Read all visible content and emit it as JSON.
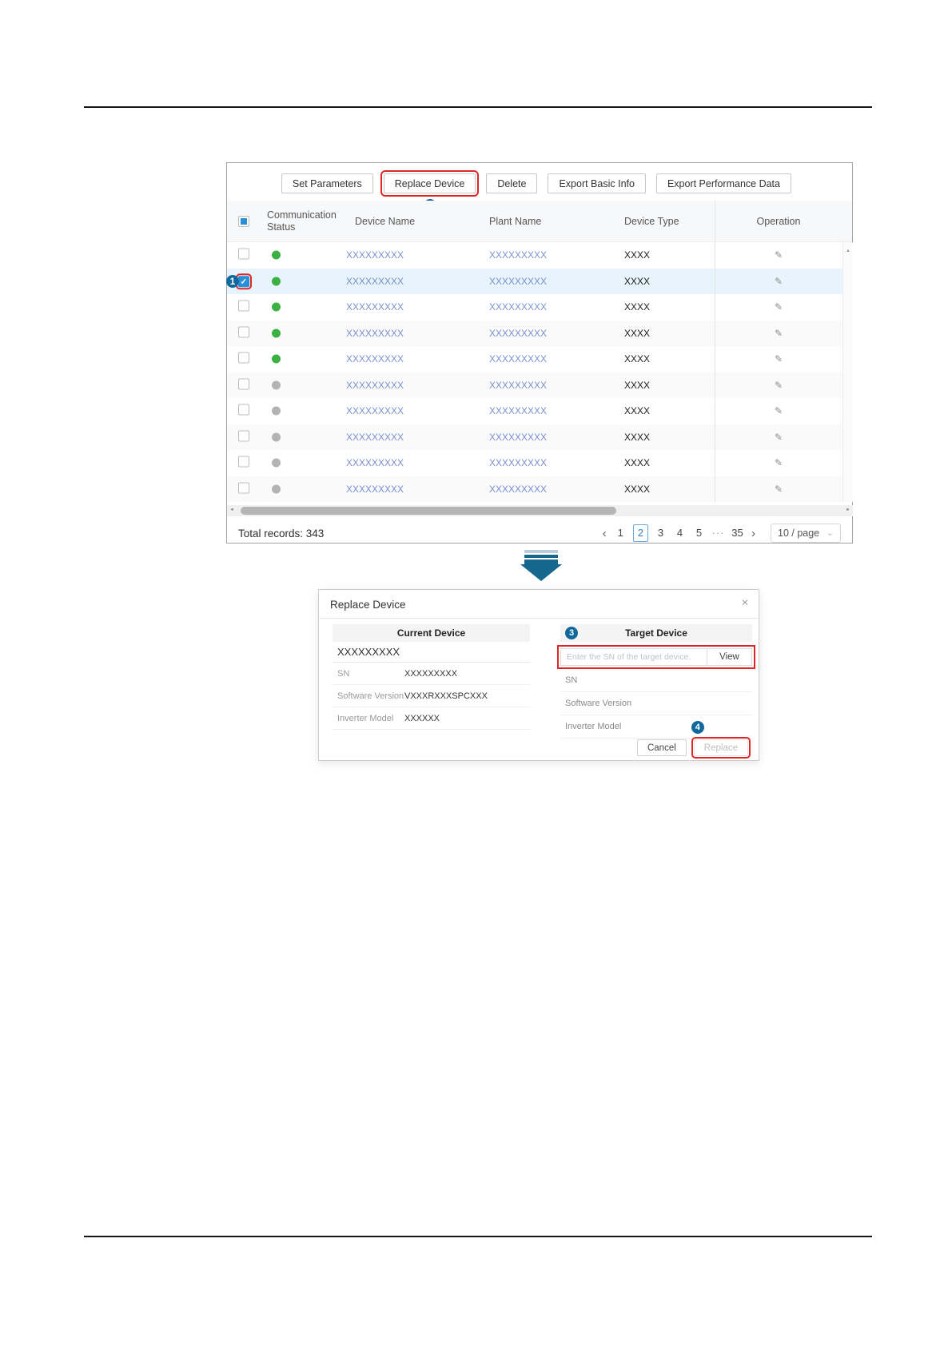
{
  "annotations": {
    "step1": "1",
    "step2": "2",
    "step3": "3",
    "step4": "4"
  },
  "icons": {
    "edit": "✎",
    "close": "✕",
    "dropdown": "⌄",
    "prev": "‹",
    "next": "›",
    "scroll_up": "▲",
    "scroll_left": "◄",
    "scroll_right": "►"
  },
  "toolbar": {
    "set_parameters": "Set Parameters",
    "replace_device": "Replace Device",
    "delete": "Delete",
    "export_basic": "Export Basic Info",
    "export_perf": "Export Performance Data"
  },
  "table": {
    "header": {
      "status": "Communication Status",
      "device": "Device Name",
      "plant": "Plant Name",
      "type": "Device Type",
      "operation": "Operation"
    },
    "rows": [
      {
        "status": "online",
        "checked": false,
        "selected": false,
        "device": "XXXXXXXXX",
        "plant": "XXXXXXXXX",
        "type": "XXXX"
      },
      {
        "status": "online",
        "checked": true,
        "selected": true,
        "device": "XXXXXXXXX",
        "plant": "XXXXXXXXX",
        "type": "XXXX"
      },
      {
        "status": "online",
        "checked": false,
        "selected": false,
        "device": "XXXXXXXXX",
        "plant": "XXXXXXXXX",
        "type": "XXXX"
      },
      {
        "status": "online",
        "checked": false,
        "selected": false,
        "device": "XXXXXXXXX",
        "plant": "XXXXXXXXX",
        "type": "XXXX"
      },
      {
        "status": "online",
        "checked": false,
        "selected": false,
        "device": "XXXXXXXXX",
        "plant": "XXXXXXXXX",
        "type": "XXXX"
      },
      {
        "status": "offline",
        "checked": false,
        "selected": false,
        "device": "XXXXXXXXX",
        "plant": "XXXXXXXXX",
        "type": "XXXX"
      },
      {
        "status": "offline",
        "checked": false,
        "selected": false,
        "device": "XXXXXXXXX",
        "plant": "XXXXXXXXX",
        "type": "XXXX"
      },
      {
        "status": "offline",
        "checked": false,
        "selected": false,
        "device": "XXXXXXXXX",
        "plant": "XXXXXXXXX",
        "type": "XXXX"
      },
      {
        "status": "offline",
        "checked": false,
        "selected": false,
        "device": "XXXXXXXXX",
        "plant": "XXXXXXXXX",
        "type": "XXXX"
      },
      {
        "status": "offline",
        "checked": false,
        "selected": false,
        "device": "XXXXXXXXX",
        "plant": "XXXXXXXXX",
        "type": "XXXX"
      }
    ],
    "footer": {
      "total": "Total records: 343",
      "pages": [
        "1",
        "2",
        "3",
        "4",
        "5",
        "···",
        "35"
      ],
      "active_page": "2",
      "page_size": "10 / page"
    }
  },
  "dialog": {
    "title": "Replace Device",
    "current": {
      "header": "Current Device",
      "name": "XXXXXXXXX",
      "fields": [
        {
          "label": "SN",
          "value": "XXXXXXXXX"
        },
        {
          "label": "Software Version",
          "value": "VXXXRXXXSPCXXX"
        },
        {
          "label": "Inverter Model",
          "value": "XXXXXX"
        }
      ]
    },
    "target": {
      "header": "Target Device",
      "sn_placeholder": "Enter the SN of the target device.",
      "view": "View",
      "fields": [
        "SN",
        "Software Version",
        "Inverter Model"
      ]
    },
    "cancel": "Cancel",
    "replace": "Replace"
  },
  "colors": {
    "step": "#11689c",
    "red": "#e02525",
    "link": "#7b91cf",
    "green": "#3cb043",
    "graydot": "#b3b3b3",
    "selrow": "#e7f4fb",
    "checkblue": "#2b8fd8",
    "pageactive": "#4a90d9"
  }
}
